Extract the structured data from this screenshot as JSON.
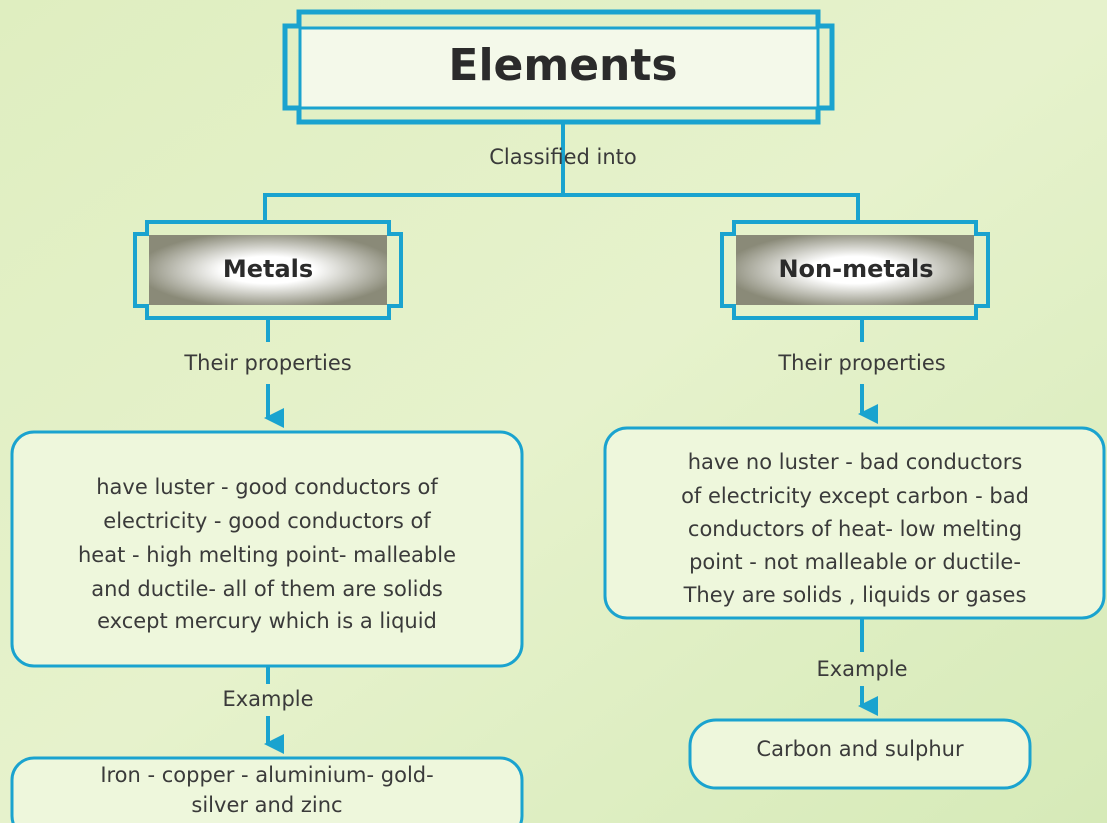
{
  "title": "Elements",
  "title_connector": "Classified into",
  "branches": [
    {
      "label": "Metals",
      "properties_connector": "Their properties",
      "properties": [
        "have luster - good conductors of",
        "electricity - good conductors of",
        "heat - high melting point- malleable",
        "and ductile- all of them are solids",
        "except mercury which is a liquid"
      ],
      "example_connector": "Example",
      "example": [
        "Iron - copper - aluminium- gold-",
        "silver and zinc"
      ]
    },
    {
      "label": "Non-metals",
      "properties_connector": "Their properties",
      "properties": [
        "have no luster - bad conductors",
        "of electricity except carbon - bad",
        "conductors of heat- low melting",
        "point - not malleable or ductile-",
        "They are solids , liquids or gases"
      ],
      "example_connector": "Example",
      "example": [
        "Carbon and sulphur"
      ]
    }
  ]
}
